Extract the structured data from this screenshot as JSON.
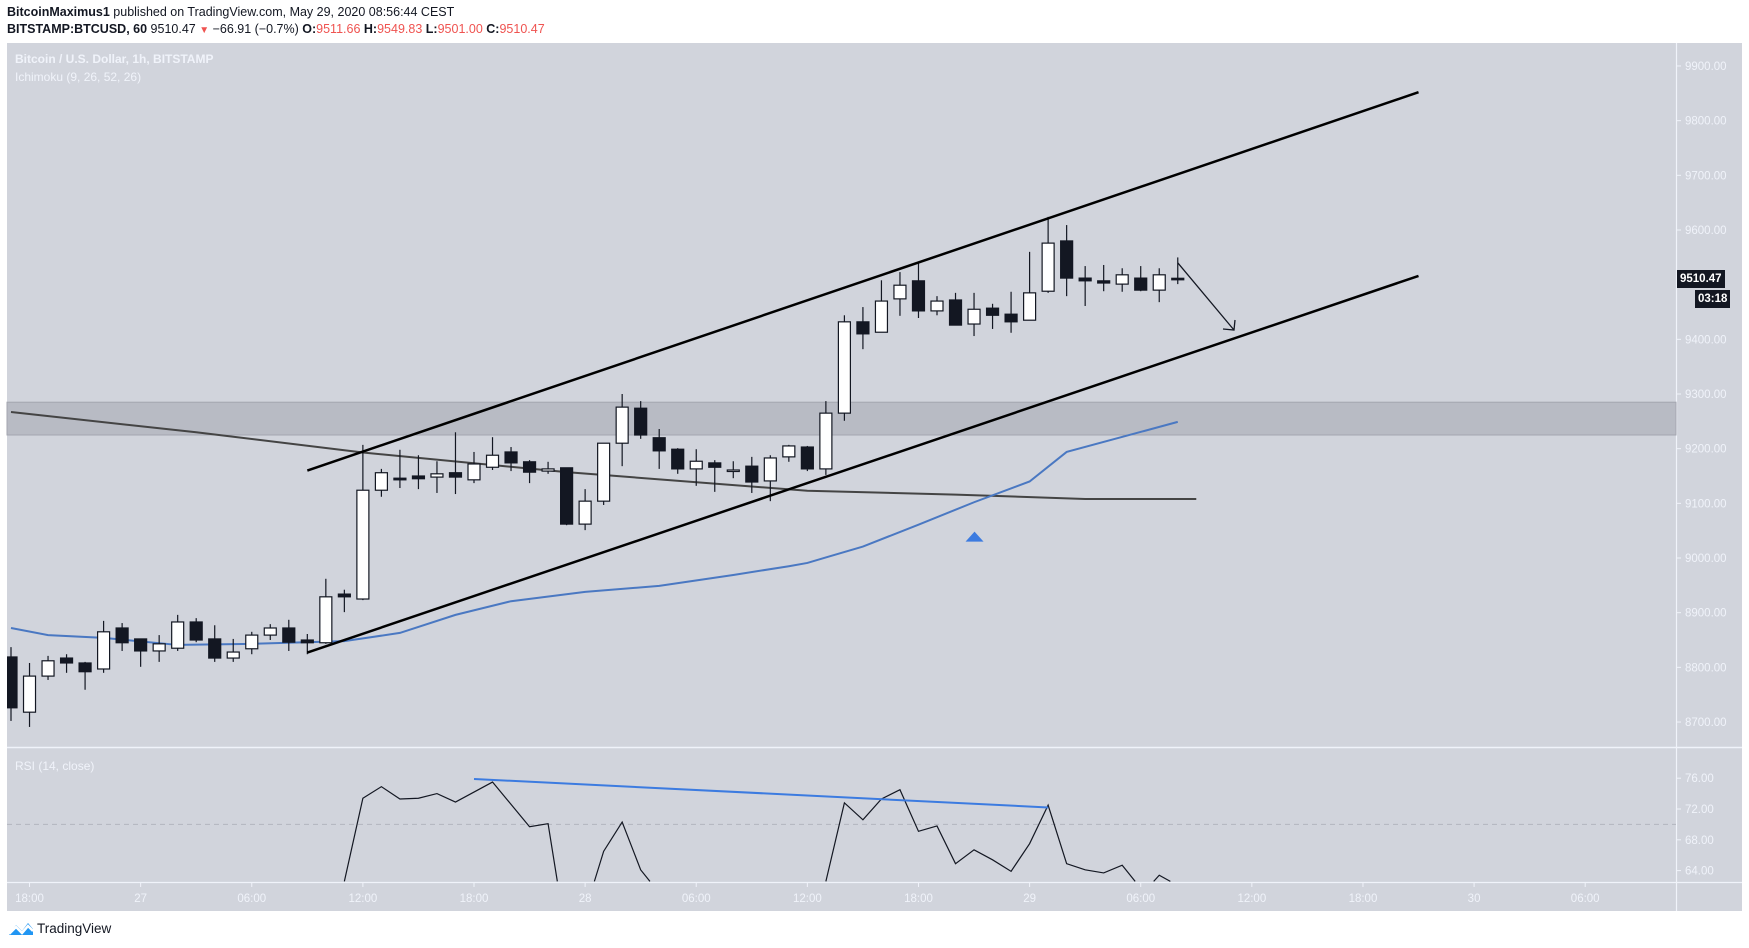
{
  "header": {
    "author": "BitcoinMaximus1",
    "published": "published on TradingView.com, May 29, 2020 08:56:44 CEST",
    "symbol": "BITSTAMP:BTCUSD, 60",
    "last": "9510.47",
    "change_icon": "triangle-down-icon",
    "change": "−66.91 (−0.7%)",
    "o_label": "O:",
    "o_value": "9511.66",
    "h_label": "H:",
    "h_value": "9549.83",
    "l_label": "L:",
    "l_value": "9501.00",
    "c_label": "C:",
    "c_value": "9510.47"
  },
  "legend": {
    "title": "Bitcoin / U.S. Dollar, 1h, BITSTAMP",
    "indicator": "Ichimoku (9, 26, 52, 26)",
    "rsi": "RSI (14, close)"
  },
  "price_tag": {
    "price": "9510.47",
    "countdown": "03:18"
  },
  "footer": {
    "brand": "TradingView"
  },
  "colors": {
    "background": "#d1d4dc",
    "bull_body": "#ffffff",
    "bear_body": "#131722",
    "blue_line": "#4a78c2",
    "dark_line": "#444444",
    "zone": "#b8bbc4",
    "axis_text": "#f0f3fa",
    "rsi_trend": "#3c7be0"
  },
  "chart_data": [
    {
      "type": "candlestick",
      "title": "Bitcoin / U.S. Dollar, 1h, BITSTAMP",
      "xlabel": "",
      "ylabel": "",
      "ylim": [
        8680,
        9960
      ],
      "yticks": [
        "9900.00",
        "9800.00",
        "9700.00",
        "9600.00",
        "9400.00",
        "9300.00",
        "9200.00",
        "9100.00",
        "9000.00",
        "8900.00",
        "8800.00",
        "8700.00"
      ],
      "xticks": [
        "18:00",
        "27",
        "06:00",
        "12:00",
        "18:00",
        "28",
        "06:00",
        "12:00",
        "18:00",
        "29",
        "06:00",
        "12:00",
        "18:00",
        "30",
        "06:00"
      ],
      "first_bar": "May 26 17:00",
      "ohlc": [
        [
          8819,
          8837,
          8702,
          8726
        ],
        [
          8718,
          8808,
          8691,
          8784
        ],
        [
          8784,
          8821,
          8777,
          8812
        ],
        [
          8817,
          8824,
          8790,
          8808
        ],
        [
          8808,
          8810,
          8759,
          8792
        ],
        [
          8797,
          8885,
          8790,
          8865
        ],
        [
          8872,
          8881,
          8830,
          8845
        ],
        [
          8852,
          8852,
          8801,
          8830
        ],
        [
          8830,
          8859,
          8810,
          8843
        ],
        [
          8835,
          8896,
          8830,
          8883
        ],
        [
          8883,
          8890,
          8846,
          8850
        ],
        [
          8852,
          8877,
          8810,
          8817
        ],
        [
          8817,
          8852,
          8810,
          8828
        ],
        [
          8834,
          8865,
          8824,
          8859
        ],
        [
          8859,
          8879,
          8850,
          8872
        ],
        [
          8872,
          8887,
          8830,
          8846
        ],
        [
          8850,
          8861,
          8824,
          8845
        ],
        [
          8845,
          8962,
          8843,
          8929
        ],
        [
          8934,
          8942,
          8901,
          8929
        ],
        [
          8925,
          9207,
          8923,
          9124
        ],
        [
          9124,
          9163,
          9112,
          9156
        ],
        [
          9146,
          9198,
          9128,
          9143
        ],
        [
          9150,
          9188,
          9126,
          9145
        ],
        [
          9148,
          9177,
          9119,
          9154
        ],
        [
          9156,
          9230,
          9117,
          9148
        ],
        [
          9143,
          9194,
          9137,
          9172
        ],
        [
          9166,
          9221,
          9161,
          9188
        ],
        [
          9194,
          9203,
          9159,
          9174
        ],
        [
          9176,
          9179,
          9137,
          9157
        ],
        [
          9159,
          9176,
          9154,
          9163
        ],
        [
          9165,
          9165,
          9060,
          9062
        ],
        [
          9062,
          9126,
          9051,
          9104
        ],
        [
          9104,
          9210,
          9097,
          9210
        ],
        [
          9210,
          9300,
          9168,
          9276
        ],
        [
          9274,
          9287,
          9218,
          9225
        ],
        [
          9220,
          9236,
          9163,
          9196
        ],
        [
          9199,
          9201,
          9154,
          9163
        ],
        [
          9163,
          9199,
          9132,
          9177
        ],
        [
          9174,
          9179,
          9121,
          9166
        ],
        [
          9161,
          9177,
          9146,
          9161
        ],
        [
          9168,
          9185,
          9119,
          9139
        ],
        [
          9141,
          9188,
          9104,
          9183
        ],
        [
          9185,
          9207,
          9176,
          9205
        ],
        [
          9203,
          9205,
          9159,
          9163
        ],
        [
          9163,
          9287,
          9152,
          9265
        ],
        [
          9265,
          9444,
          9251,
          9432
        ],
        [
          9432,
          9459,
          9382,
          9410
        ],
        [
          9413,
          9508,
          9413,
          9470
        ],
        [
          9474,
          9523,
          9443,
          9499
        ],
        [
          9507,
          9540,
          9439,
          9452
        ],
        [
          9452,
          9479,
          9444,
          9470
        ],
        [
          9472,
          9485,
          9426,
          9426
        ],
        [
          9428,
          9485,
          9406,
          9455
        ],
        [
          9457,
          9465,
          9419,
          9444
        ],
        [
          9446,
          9487,
          9412,
          9432
        ],
        [
          9435,
          9560,
          9435,
          9485
        ],
        [
          9488,
          9624,
          9485,
          9576
        ],
        [
          9580,
          9609,
          9479,
          9512
        ],
        [
          9512,
          9534,
          9461,
          9507
        ],
        [
          9507,
          9536,
          9488,
          9503
        ],
        [
          9501,
          9530,
          9487,
          9518
        ],
        [
          9512,
          9534,
          9488,
          9490
        ],
        [
          9490,
          9530,
          9468,
          9518
        ],
        [
          9511.66,
          9549.83,
          9501.0,
          9510.47
        ]
      ],
      "support_zone": [
        9225,
        9285
      ],
      "channel_upper": [
        [
          16,
          9160
        ],
        [
          76,
          9852
        ]
      ],
      "channel_lower": [
        [
          16,
          8827
        ],
        [
          76,
          9516
        ]
      ],
      "arrow": [
        [
          63,
          9540
        ],
        [
          66,
          9420
        ]
      ],
      "ma_dark": [
        [
          0,
          9267
        ],
        [
          10,
          9230
        ],
        [
          19,
          9193
        ],
        [
          30,
          9157
        ],
        [
          43,
          9123
        ],
        [
          51,
          9116
        ],
        [
          58,
          9108
        ],
        [
          61,
          9108
        ],
        [
          64,
          9108
        ]
      ],
      "ma_blue": [
        [
          0,
          8872
        ],
        [
          2,
          8859
        ],
        [
          5,
          8854
        ],
        [
          9,
          8841
        ],
        [
          13,
          8843
        ],
        [
          18,
          8848
        ],
        [
          21,
          8863
        ],
        [
          24,
          8896
        ],
        [
          27,
          8921
        ],
        [
          31,
          8938
        ],
        [
          35,
          8949
        ],
        [
          39,
          8969
        ],
        [
          42,
          8985
        ],
        [
          43,
          8991
        ],
        [
          44,
          9001
        ],
        [
          46,
          9021
        ],
        [
          49,
          9061
        ],
        [
          52,
          9102
        ],
        [
          55,
          9140
        ],
        [
          57,
          9194
        ],
        [
          63,
          9249
        ]
      ],
      "signal_triangle": [
        52,
        9050
      ]
    },
    {
      "type": "line",
      "title": "RSI (14, close)",
      "yticks": [
        "76.00",
        "72.00",
        "68.00",
        "64.00"
      ],
      "ylim": [
        62.6,
        77.4
      ],
      "hline": 70,
      "values_visible": [
        [
          18,
          62.6
        ],
        [
          19,
          73.4
        ],
        [
          20,
          74.9
        ],
        [
          21,
          73.3
        ],
        [
          22,
          73.4
        ],
        [
          23,
          74.0
        ],
        [
          24,
          72.9
        ],
        [
          25,
          74.2
        ],
        [
          26,
          75.5
        ],
        [
          28,
          69.7
        ],
        [
          29,
          70.1
        ],
        [
          29.5,
          62.6
        ],
        [
          31.5,
          62.6
        ],
        [
          32,
          66.5
        ],
        [
          33,
          70.3
        ],
        [
          34,
          64.1
        ],
        [
          34.5,
          62.6
        ],
        [
          44,
          62.6
        ],
        [
          45,
          72.8
        ],
        [
          46,
          70.6
        ],
        [
          47,
          73.3
        ],
        [
          48,
          74.5
        ],
        [
          49,
          69.1
        ],
        [
          50,
          69.8
        ],
        [
          51,
          64.9
        ],
        [
          52,
          66.7
        ],
        [
          53,
          65.4
        ],
        [
          54,
          63.9
        ],
        [
          55,
          67.5
        ],
        [
          56,
          72.5
        ],
        [
          57,
          64.9
        ],
        [
          58,
          64.1
        ],
        [
          59,
          63.7
        ],
        [
          60,
          64.7
        ],
        [
          60.7,
          62.6
        ],
        [
          61.7,
          62.6
        ],
        [
          62,
          63.4
        ],
        [
          62.6,
          62.6
        ]
      ],
      "trendline": [
        [
          25,
          75.9
        ],
        [
          56,
          72.2
        ]
      ]
    }
  ]
}
